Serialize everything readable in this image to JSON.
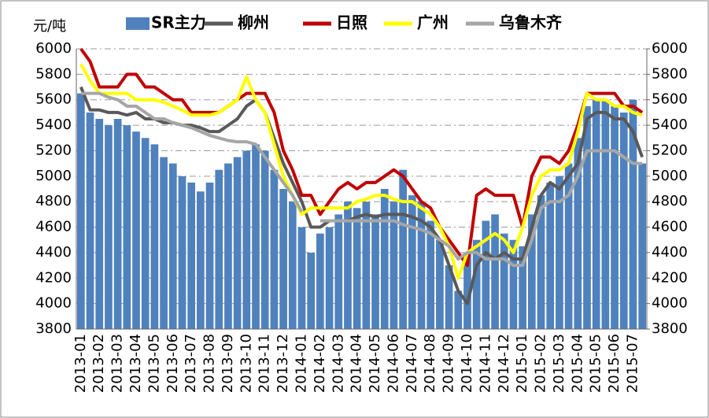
{
  "chart_data": {
    "type": "bar",
    "y_label": "元/吨",
    "categories": [
      "2013-01",
      null,
      "2013-02",
      null,
      "2013-03",
      null,
      "2013-04",
      null,
      "2013-05",
      null,
      "2013-06",
      null,
      "2013-07",
      null,
      "2013-08",
      null,
      "2013-09",
      null,
      "2013-10",
      null,
      "2013-11",
      null,
      "2013-12",
      null,
      "2014-01",
      null,
      "2014-02",
      null,
      "2014-03",
      null,
      "2014-04",
      null,
      "2014-05",
      null,
      "2014-06",
      null,
      "2014-07",
      null,
      "2014-08",
      null,
      "2014-09",
      null,
      "2014-10",
      null,
      "2014-11",
      null,
      "2014-12",
      null,
      "2015-01",
      null,
      "2015-02",
      null,
      "2015-03",
      null,
      "2015-04",
      null,
      "2015-05",
      null,
      "2015-06",
      null,
      "2015-07",
      null
    ],
    "series": [
      {
        "name": "SR主力",
        "type": "bar",
        "color": "#4f81bd",
        "values": [
          5650,
          5500,
          5450,
          5400,
          5450,
          5400,
          5350,
          5300,
          5250,
          5150,
          5100,
          5000,
          4950,
          4880,
          4950,
          5050,
          5100,
          5150,
          5200,
          5250,
          5200,
          5050,
          4900,
          4800,
          4600,
          4400,
          4550,
          4600,
          4700,
          4800,
          4750,
          4800,
          4700,
          4900,
          4800,
          5050,
          4850,
          4800,
          4650,
          4500,
          4300,
          4100,
          4400,
          4500,
          4650,
          4700,
          4550,
          4500,
          4450,
          4700,
          4850,
          4950,
          5000,
          5100,
          5300,
          5550,
          5600,
          5600,
          5550,
          5500,
          5600,
          5100
        ]
      },
      {
        "name": "柳州",
        "type": "line",
        "color": "#595959",
        "values": [
          5700,
          5520,
          5520,
          5500,
          5500,
          5480,
          5500,
          5450,
          5450,
          5420,
          5420,
          5400,
          5400,
          5380,
          5350,
          5350,
          5400,
          5450,
          5550,
          5600,
          5500,
          5300,
          5100,
          4950,
          4800,
          4600,
          4600,
          4650,
          4650,
          4650,
          4680,
          4700,
          4680,
          4700,
          4700,
          4700,
          4680,
          4650,
          4600,
          4500,
          4300,
          4100,
          4000,
          4300,
          4400,
          4350,
          4400,
          4350,
          4350,
          4600,
          4850,
          4950,
          4900,
          5000,
          5100,
          5450,
          5500,
          5500,
          5450,
          5450,
          5350,
          5150
        ]
      },
      {
        "name": "日照",
        "type": "line",
        "color": "#c00000",
        "values": [
          6000,
          5900,
          5700,
          5700,
          5700,
          5800,
          5800,
          5700,
          5700,
          5650,
          5600,
          5600,
          5500,
          5500,
          5500,
          5500,
          5550,
          5600,
          5650,
          5650,
          5650,
          5500,
          5200,
          5050,
          4850,
          4850,
          4700,
          4800,
          4900,
          4950,
          4900,
          4950,
          4950,
          5000,
          5050,
          5000,
          4900,
          4800,
          4750,
          4600,
          4500,
          4400,
          4300,
          4850,
          4900,
          4850,
          4850,
          4850,
          4600,
          5000,
          5150,
          5150,
          5100,
          5200,
          5400,
          5650,
          5650,
          5650,
          5650,
          5550,
          5550,
          5500
        ]
      },
      {
        "name": "广州",
        "type": "line",
        "color": "#ffff00",
        "values": [
          5880,
          5750,
          5650,
          5650,
          5650,
          5650,
          5600,
          5600,
          5600,
          5580,
          5550,
          5520,
          5480,
          5480,
          5480,
          5500,
          5550,
          5600,
          5780,
          5600,
          5500,
          5250,
          5000,
          4850,
          4700,
          4750,
          4750,
          4750,
          4750,
          4750,
          4800,
          4820,
          4850,
          4850,
          4820,
          4800,
          4800,
          4750,
          4700,
          4600,
          4450,
          4200,
          4400,
          4450,
          4500,
          4550,
          4500,
          4400,
          4600,
          4850,
          5000,
          5050,
          5050,
          5100,
          5350,
          5650,
          5600,
          5600,
          5550,
          5550,
          5500,
          5480
        ]
      },
      {
        "name": "乌鲁木齐",
        "type": "line",
        "color": "#a6a6a6",
        "values": [
          5650,
          5650,
          5650,
          5620,
          5600,
          5550,
          5550,
          5500,
          5450,
          5450,
          5420,
          5400,
          5380,
          5350,
          5320,
          5300,
          5280,
          5270,
          5270,
          5250,
          5150,
          5050,
          4950,
          4850,
          4720,
          null,
          4650,
          4650,
          4650,
          4650,
          4650,
          4650,
          4650,
          4650,
          4650,
          4620,
          4600,
          4580,
          4550,
          4500,
          4450,
          4350,
          4400,
          4400,
          4350,
          4350,
          4350,
          4300,
          4300,
          4500,
          4750,
          4800,
          4800,
          4850,
          5000,
          5200,
          5200,
          5200,
          5200,
          5150,
          5100,
          5100
        ]
      }
    ],
    "ylim": [
      3800,
      6000
    ],
    "yticks": [
      3800,
      4000,
      4200,
      4400,
      4600,
      4800,
      5000,
      5200,
      5400,
      5600,
      5800,
      6000
    ],
    "y2lim": [
      3800,
      6000
    ],
    "y2ticks": [
      3800,
      4000,
      4200,
      4400,
      4600,
      4800,
      5000,
      5200,
      5400,
      5600,
      5800,
      6000
    ],
    "grid": true
  }
}
